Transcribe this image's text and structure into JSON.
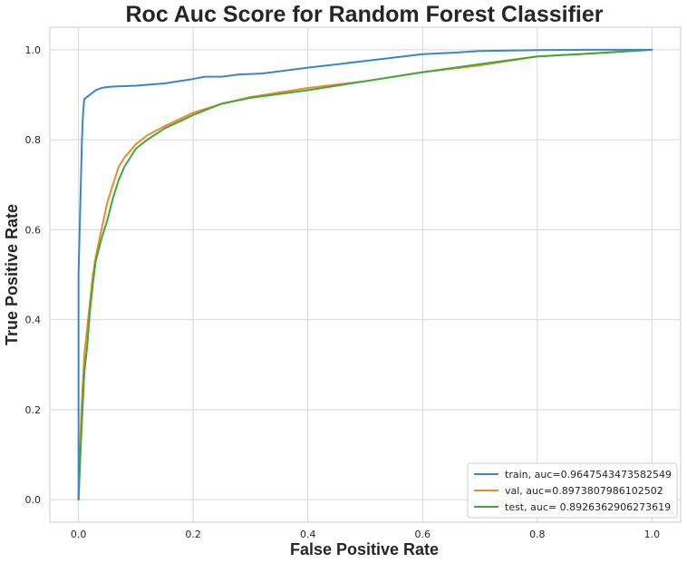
{
  "chart_data": {
    "type": "line",
    "title": "Roc Auc Score for Random Forest Classifier",
    "xlabel": "False Positive Rate",
    "ylabel": "True Positive Rate",
    "xlim": [
      -0.05,
      1.05
    ],
    "ylim": [
      -0.05,
      1.05
    ],
    "xticks": [
      0.0,
      0.2,
      0.4,
      0.6,
      0.8,
      1.0
    ],
    "yticks": [
      0.0,
      0.2,
      0.4,
      0.6,
      0.8,
      1.0
    ],
    "xtick_labels": [
      "0.0",
      "0.2",
      "0.4",
      "0.6",
      "0.8",
      "1.0"
    ],
    "ytick_labels": [
      "0.0",
      "0.2",
      "0.4",
      "0.6",
      "0.8",
      "1.0"
    ],
    "grid": true,
    "legend_position": "bottom-right",
    "series": [
      {
        "name": "train, auc=0.9647543473582549",
        "color": "#3a86c8",
        "x": [
          0.0,
          0.0,
          0.002,
          0.004,
          0.006,
          0.008,
          0.01,
          0.02,
          0.03,
          0.04,
          0.05,
          0.06,
          0.08,
          0.1,
          0.15,
          0.2,
          0.22,
          0.25,
          0.28,
          0.32,
          0.4,
          0.5,
          0.6,
          0.65,
          0.7,
          0.8,
          0.9,
          1.0
        ],
        "y": [
          0.0,
          0.5,
          0.6,
          0.7,
          0.8,
          0.86,
          0.89,
          0.9,
          0.91,
          0.915,
          0.917,
          0.918,
          0.919,
          0.92,
          0.925,
          0.935,
          0.94,
          0.94,
          0.945,
          0.947,
          0.96,
          0.975,
          0.99,
          0.993,
          0.997,
          0.999,
          1.0,
          1.0
        ]
      },
      {
        "name": "val, auc=0.8973807986102502",
        "color": "#f08a24",
        "x": [
          0.0,
          0.005,
          0.01,
          0.015,
          0.02,
          0.025,
          0.03,
          0.04,
          0.05,
          0.06,
          0.07,
          0.08,
          0.1,
          0.12,
          0.15,
          0.2,
          0.25,
          0.3,
          0.4,
          0.5,
          0.6,
          0.7,
          0.8,
          0.9,
          1.0
        ],
        "y": [
          0.0,
          0.2,
          0.32,
          0.38,
          0.44,
          0.5,
          0.54,
          0.6,
          0.66,
          0.7,
          0.74,
          0.76,
          0.79,
          0.81,
          0.83,
          0.86,
          0.88,
          0.895,
          0.915,
          0.93,
          0.95,
          0.965,
          0.985,
          0.992,
          1.0
        ]
      },
      {
        "name": "test, auc= 0.8926362906273619",
        "color": "#3fa73f",
        "x": [
          0.0,
          0.005,
          0.01,
          0.015,
          0.02,
          0.025,
          0.03,
          0.04,
          0.05,
          0.06,
          0.07,
          0.08,
          0.1,
          0.12,
          0.15,
          0.2,
          0.25,
          0.3,
          0.4,
          0.5,
          0.6,
          0.7,
          0.8,
          0.9,
          1.0
        ],
        "y": [
          0.0,
          0.15,
          0.28,
          0.34,
          0.42,
          0.48,
          0.53,
          0.58,
          0.62,
          0.67,
          0.71,
          0.74,
          0.78,
          0.8,
          0.825,
          0.855,
          0.88,
          0.893,
          0.91,
          0.93,
          0.95,
          0.968,
          0.985,
          0.992,
          1.0
        ]
      }
    ]
  }
}
